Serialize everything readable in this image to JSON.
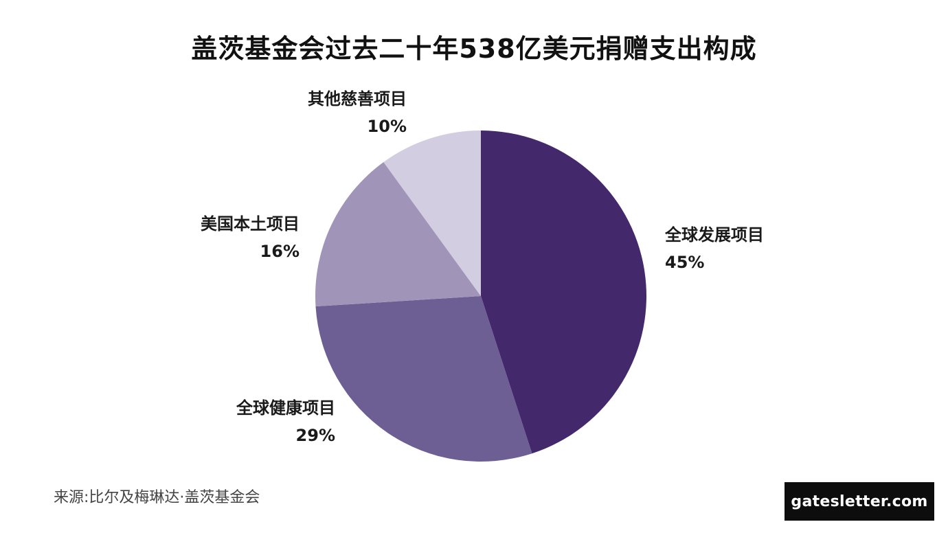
{
  "chart_data": {
    "type": "pie",
    "title": "盖茨基金会过去二十年538亿美元捐赠支出构成",
    "slices": [
      {
        "label": "全球发展项目",
        "value": 45,
        "value_label": "45%",
        "color": "#43286b"
      },
      {
        "label": "全球健康项目",
        "value": 29,
        "value_label": "29%",
        "color": "#6d5e94"
      },
      {
        "label": "美国本土项目",
        "value": 16,
        "value_label": "16%",
        "color": "#a094b9"
      },
      {
        "label": "其他慈善项目",
        "value": 10,
        "value_label": "10%",
        "color": "#d2cde0"
      }
    ],
    "start": "12 o'clock",
    "direction": "clockwise",
    "legend": "none"
  },
  "footer": {
    "source": "来源:比尔及梅琳达·盖茨基金会",
    "site": "gatesletter.com"
  }
}
